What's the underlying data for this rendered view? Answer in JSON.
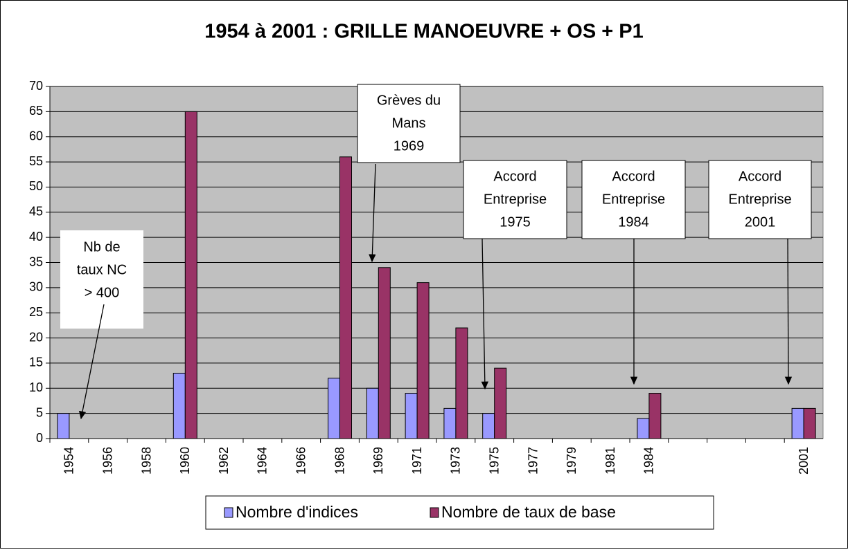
{
  "chart_data": {
    "type": "bar",
    "title": "1954 à 2001 : GRILLE MANOEUVRE + OS + P1",
    "categories": [
      "1954",
      "1956",
      "1958",
      "1960",
      "1962",
      "1964",
      "1966",
      "1968",
      "1969",
      "1971",
      "1973",
      "1975",
      "1977",
      "1979",
      "1981",
      "1984",
      null,
      null,
      null,
      "2001"
    ],
    "series": [
      {
        "name": "Nombre d'indices",
        "color": "#9999ff",
        "values": [
          5,
          null,
          null,
          13,
          null,
          null,
          null,
          12,
          10,
          9,
          6,
          5,
          null,
          null,
          null,
          4,
          null,
          null,
          null,
          6
        ]
      },
      {
        "name": "Nombre de taux de base",
        "color": "#993366",
        "values": [
          null,
          null,
          null,
          65,
          null,
          null,
          null,
          56,
          34,
          31,
          22,
          14,
          null,
          null,
          null,
          9,
          null,
          null,
          null,
          6
        ]
      }
    ],
    "ylim": [
      0,
      70
    ],
    "yticks": [
      0,
      5,
      10,
      15,
      20,
      25,
      30,
      35,
      40,
      45,
      50,
      55,
      60,
      65,
      70
    ],
    "grid": true,
    "annotations": [
      {
        "lines": [
          "Nb de",
          "taux NC",
          "> 400"
        ]
      },
      {
        "lines": [
          "Grèves du",
          "Mans",
          "1969"
        ]
      },
      {
        "lines": [
          "Accord",
          "Entreprise",
          "1975"
        ]
      },
      {
        "lines": [
          "Accord",
          "Entreprise",
          "1984"
        ]
      },
      {
        "lines": [
          "Accord",
          "Entreprise",
          "2001"
        ]
      }
    ]
  }
}
